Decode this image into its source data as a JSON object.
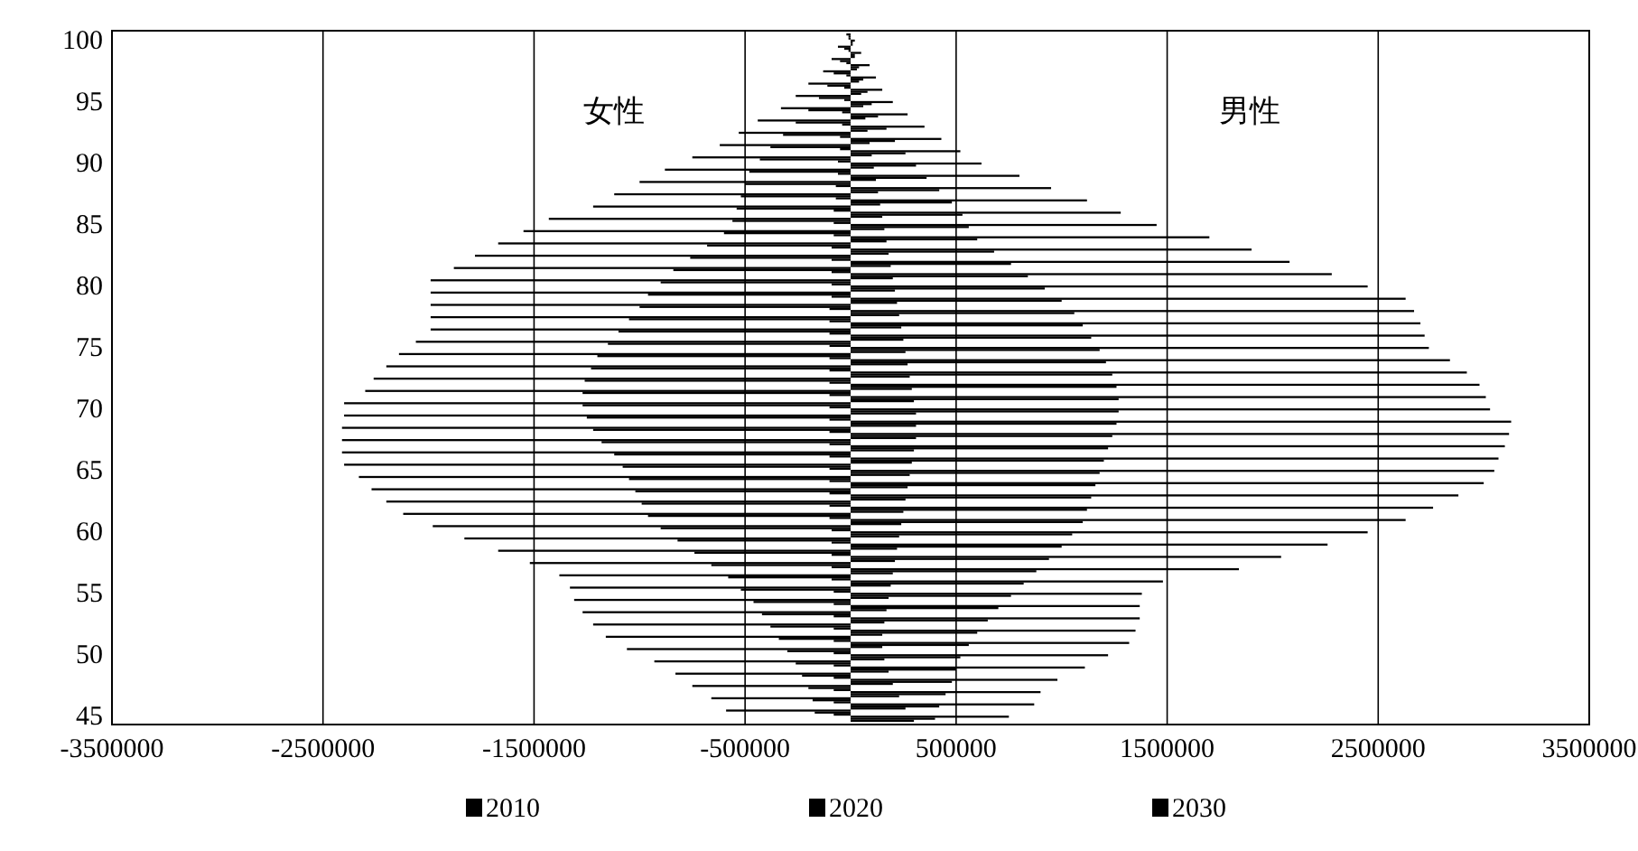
{
  "chart_data": {
    "type": "bar",
    "orientation": "horizontal",
    "annotations": [
      "女性",
      "男性"
    ],
    "categories": [
      "100",
      null,
      null,
      null,
      null,
      "95",
      null,
      null,
      null,
      null,
      "90",
      null,
      null,
      null,
      null,
      "85",
      null,
      null,
      null,
      null,
      "80",
      null,
      null,
      null,
      null,
      "75",
      null,
      null,
      null,
      null,
      "70",
      null,
      null,
      null,
      null,
      "65",
      null,
      null,
      null,
      null,
      "60",
      null,
      null,
      null,
      null,
      "55",
      null,
      null,
      null,
      null,
      "50",
      null,
      null,
      null,
      null,
      "45"
    ],
    "series": [
      {
        "name": "2010",
        "color": "#000000",
        "values": [
          -20000,
          -60000,
          -90000,
          -130000,
          -200000,
          -260000,
          -330000,
          -440000,
          -530000,
          -620000,
          -750000,
          -880000,
          -1000000,
          -1120000,
          -1220000,
          -1430000,
          -1550000,
          -1670000,
          -1780000,
          -1880000,
          -1990000,
          -1990000,
          -1990000,
          -1990000,
          -1990000,
          -2060000,
          -2140000,
          -2200000,
          -2260000,
          -2300000,
          -2400000,
          -2400000,
          -2410000,
          -2410000,
          -2410000,
          -2400000,
          -2330000,
          -2270000,
          -2200000,
          -2120000,
          -1980000,
          -1830000,
          -1670000,
          -1520000,
          -1380000,
          -1330000,
          -1310000,
          -1270000,
          -1220000,
          -1160000,
          -1060000,
          -930000,
          -830000,
          -750000,
          -660000,
          -590000
        ]
      },
      {
        "name": "2020",
        "color": "#000000",
        "values": [
          -10000,
          -30000,
          -50000,
          -80000,
          -110000,
          -150000,
          -200000,
          -260000,
          -320000,
          -380000,
          -430000,
          -480000,
          -500000,
          -520000,
          -540000,
          -560000,
          -600000,
          -680000,
          -760000,
          -840000,
          -900000,
          -960000,
          -1000000,
          -1050000,
          -1100000,
          -1150000,
          -1200000,
          -1230000,
          -1260000,
          -1270000,
          -1270000,
          -1250000,
          -1220000,
          -1180000,
          -1120000,
          -1080000,
          -1050000,
          -1020000,
          -990000,
          -960000,
          -900000,
          -820000,
          -740000,
          -660000,
          -580000,
          -520000,
          -460000,
          -420000,
          -380000,
          -340000,
          -300000,
          -260000,
          -230000,
          -200000,
          -180000,
          -170000
        ]
      },
      {
        "name": "2030",
        "color": "#000000",
        "values": [
          -10000,
          -10000,
          -20000,
          -20000,
          -30000,
          -30000,
          -40000,
          -40000,
          -50000,
          -50000,
          -60000,
          -60000,
          -70000,
          -70000,
          -80000,
          -80000,
          -80000,
          -90000,
          -90000,
          -90000,
          -90000,
          -90000,
          -100000,
          -100000,
          -100000,
          -100000,
          -100000,
          -100000,
          -100000,
          -100000,
          -100000,
          -100000,
          -100000,
          -100000,
          -100000,
          -100000,
          -100000,
          -100000,
          -100000,
          -100000,
          -90000,
          -90000,
          -90000,
          -90000,
          -90000,
          -80000,
          -80000,
          -80000,
          -80000,
          -80000,
          -80000,
          -80000,
          -80000,
          -80000,
          -80000,
          -80000
        ]
      },
      {
        "color": "#000000",
        "values": [
          20000,
          50000,
          90000,
          120000,
          150000,
          200000,
          270000,
          350000,
          430000,
          520000,
          620000,
          800000,
          950000,
          1120000,
          1280000,
          1450000,
          1700000,
          1900000,
          2080000,
          2280000,
          2450000,
          2630000,
          2670000,
          2700000,
          2720000,
          2740000,
          2840000,
          2920000,
          2980000,
          3010000,
          3030000,
          3130000,
          3120000,
          3100000,
          3070000,
          3050000,
          3000000,
          2880000,
          2760000,
          2630000,
          2450000,
          2260000,
          2040000,
          1840000,
          1480000,
          1380000,
          1370000,
          1370000,
          1350000,
          1320000,
          1220000,
          1110000,
          980000,
          900000,
          870000,
          750000
        ]
      },
      {
        "color": "#000000",
        "values": [
          10000,
          20000,
          40000,
          60000,
          80000,
          100000,
          130000,
          170000,
          210000,
          260000,
          310000,
          360000,
          420000,
          480000,
          530000,
          560000,
          600000,
          680000,
          760000,
          840000,
          920000,
          1000000,
          1060000,
          1100000,
          1140000,
          1180000,
          1210000,
          1240000,
          1260000,
          1270000,
          1270000,
          1260000,
          1240000,
          1220000,
          1200000,
          1180000,
          1160000,
          1140000,
          1120000,
          1100000,
          1050000,
          1000000,
          940000,
          880000,
          820000,
          760000,
          700000,
          650000,
          600000,
          560000,
          520000,
          500000,
          480000,
          450000,
          420000,
          400000
        ]
      },
      {
        "color": "#000000",
        "values": [
          10000,
          20000,
          30000,
          40000,
          50000,
          60000,
          70000,
          80000,
          90000,
          100000,
          110000,
          120000,
          130000,
          140000,
          150000,
          160000,
          170000,
          180000,
          190000,
          200000,
          210000,
          220000,
          230000,
          240000,
          250000,
          260000,
          270000,
          280000,
          290000,
          300000,
          310000,
          310000,
          310000,
          300000,
          290000,
          280000,
          270000,
          260000,
          250000,
          240000,
          230000,
          220000,
          210000,
          200000,
          190000,
          180000,
          170000,
          160000,
          150000,
          150000,
          160000,
          180000,
          200000,
          230000,
          260000,
          300000
        ]
      }
    ],
    "xlim": [
      -3500000,
      3500000
    ],
    "xticks": [
      -3500000,
      -2500000,
      -1500000,
      -500000,
      500000,
      1500000,
      2500000,
      3500000
    ],
    "grid": "x",
    "legend": "bottom"
  }
}
